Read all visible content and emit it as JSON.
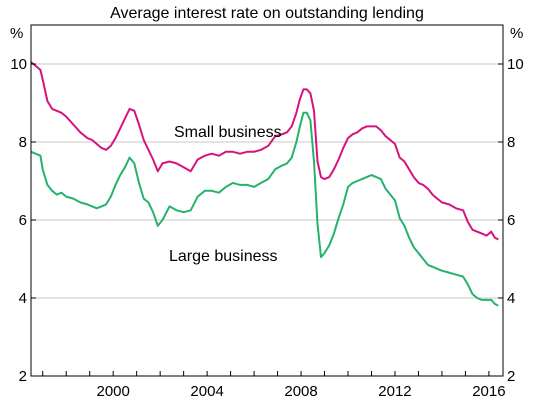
{
  "colors": {
    "small_business": "#d6137d",
    "large_business": "#25b36b",
    "axis": "#000000",
    "grid": "#c8c8c8"
  },
  "chart_data": {
    "type": "line",
    "title": "Average interest rate on outstanding lending",
    "left_unit": "%",
    "right_unit": "%",
    "xlabel": "",
    "ylabel": "",
    "xlim": [
      1996.5,
      2016.6
    ],
    "ylim": [
      2,
      11
    ],
    "grid": true,
    "x_ticks": [
      2000,
      2004,
      2008,
      2012,
      2016
    ],
    "y_ticks": [
      2,
      4,
      6,
      8,
      10
    ],
    "series": [
      {
        "name": "Small business",
        "color_key": "small_business",
        "x": [
          1996.5,
          1996.7,
          1996.9,
          1997.0,
          1997.2,
          1997.4,
          1997.6,
          1997.8,
          1998.0,
          1998.3,
          1998.6,
          1998.9,
          1999.1,
          1999.3,
          1999.5,
          1999.7,
          1999.9,
          2000.1,
          2000.3,
          2000.5,
          2000.7,
          2000.9,
          2001.1,
          2001.3,
          2001.5,
          2001.7,
          2001.9,
          2002.1,
          2002.4,
          2002.7,
          2003.0,
          2003.3,
          2003.6,
          2003.9,
          2004.2,
          2004.5,
          2004.8,
          2005.1,
          2005.4,
          2005.7,
          2006.0,
          2006.3,
          2006.6,
          2006.9,
          2007.2,
          2007.4,
          2007.6,
          2007.8,
          2007.95,
          2008.1,
          2008.25,
          2008.4,
          2008.55,
          2008.7,
          2008.85,
          2009.0,
          2009.2,
          2009.4,
          2009.6,
          2009.8,
          2010.0,
          2010.2,
          2010.4,
          2010.6,
          2010.8,
          2011.0,
          2011.2,
          2011.4,
          2011.6,
          2011.8,
          2012.0,
          2012.2,
          2012.4,
          2012.6,
          2012.8,
          2013.0,
          2013.2,
          2013.4,
          2013.6,
          2013.8,
          2014.0,
          2014.3,
          2014.6,
          2014.9,
          2015.1,
          2015.3,
          2015.5,
          2015.7,
          2015.9,
          2016.1,
          2016.25,
          2016.4
        ],
        "values": [
          10.05,
          9.95,
          9.85,
          9.6,
          9.05,
          8.85,
          8.8,
          8.75,
          8.65,
          8.45,
          8.25,
          8.1,
          8.05,
          7.95,
          7.85,
          7.8,
          7.9,
          8.1,
          8.35,
          8.6,
          8.85,
          8.8,
          8.45,
          8.05,
          7.8,
          7.55,
          7.25,
          7.45,
          7.5,
          7.45,
          7.35,
          7.25,
          7.55,
          7.65,
          7.7,
          7.65,
          7.75,
          7.75,
          7.7,
          7.75,
          7.75,
          7.8,
          7.9,
          8.15,
          8.2,
          8.25,
          8.4,
          8.75,
          9.1,
          9.35,
          9.35,
          9.25,
          8.8,
          7.5,
          7.1,
          7.05,
          7.1,
          7.3,
          7.55,
          7.85,
          8.1,
          8.2,
          8.25,
          8.35,
          8.4,
          8.4,
          8.4,
          8.3,
          8.15,
          8.05,
          7.95,
          7.6,
          7.5,
          7.3,
          7.1,
          6.95,
          6.9,
          6.8,
          6.65,
          6.55,
          6.45,
          6.4,
          6.3,
          6.25,
          5.95,
          5.75,
          5.7,
          5.65,
          5.6,
          5.7,
          5.55,
          5.5
        ]
      },
      {
        "name": "Large business",
        "color_key": "large_business",
        "x": [
          1996.5,
          1996.7,
          1996.9,
          1997.0,
          1997.2,
          1997.4,
          1997.6,
          1997.8,
          1998.0,
          1998.3,
          1998.6,
          1998.9,
          1999.1,
          1999.3,
          1999.5,
          1999.7,
          1999.9,
          2000.1,
          2000.3,
          2000.5,
          2000.7,
          2000.9,
          2001.1,
          2001.3,
          2001.5,
          2001.7,
          2001.9,
          2002.1,
          2002.4,
          2002.7,
          2003.0,
          2003.3,
          2003.6,
          2003.9,
          2004.2,
          2004.5,
          2004.8,
          2005.1,
          2005.4,
          2005.7,
          2006.0,
          2006.3,
          2006.6,
          2006.9,
          2007.2,
          2007.4,
          2007.6,
          2007.8,
          2007.95,
          2008.1,
          2008.25,
          2008.4,
          2008.55,
          2008.7,
          2008.85,
          2009.0,
          2009.2,
          2009.4,
          2009.6,
          2009.8,
          2010.0,
          2010.2,
          2010.4,
          2010.6,
          2010.8,
          2011.0,
          2011.2,
          2011.4,
          2011.6,
          2011.8,
          2012.0,
          2012.2,
          2012.4,
          2012.6,
          2012.8,
          2013.0,
          2013.2,
          2013.4,
          2013.6,
          2013.8,
          2014.0,
          2014.3,
          2014.6,
          2014.9,
          2015.1,
          2015.3,
          2015.5,
          2015.7,
          2015.9,
          2016.1,
          2016.25,
          2016.4
        ],
        "values": [
          7.75,
          7.7,
          7.65,
          7.3,
          6.9,
          6.75,
          6.65,
          6.7,
          6.6,
          6.55,
          6.45,
          6.4,
          6.35,
          6.3,
          6.35,
          6.4,
          6.6,
          6.9,
          7.15,
          7.35,
          7.6,
          7.45,
          6.95,
          6.55,
          6.45,
          6.2,
          5.85,
          6.0,
          6.35,
          6.25,
          6.2,
          6.25,
          6.6,
          6.75,
          6.75,
          6.7,
          6.85,
          6.95,
          6.9,
          6.9,
          6.85,
          6.95,
          7.05,
          7.3,
          7.4,
          7.45,
          7.6,
          8.0,
          8.4,
          8.75,
          8.75,
          8.55,
          7.5,
          5.9,
          5.05,
          5.15,
          5.35,
          5.65,
          6.05,
          6.4,
          6.85,
          6.95,
          7.0,
          7.05,
          7.1,
          7.15,
          7.1,
          7.05,
          6.8,
          6.65,
          6.5,
          6.05,
          5.85,
          5.55,
          5.3,
          5.15,
          5.0,
          4.85,
          4.8,
          4.75,
          4.7,
          4.65,
          4.6,
          4.55,
          4.35,
          4.1,
          4.0,
          3.95,
          3.95,
          3.95,
          3.85,
          3.8
        ]
      }
    ]
  }
}
